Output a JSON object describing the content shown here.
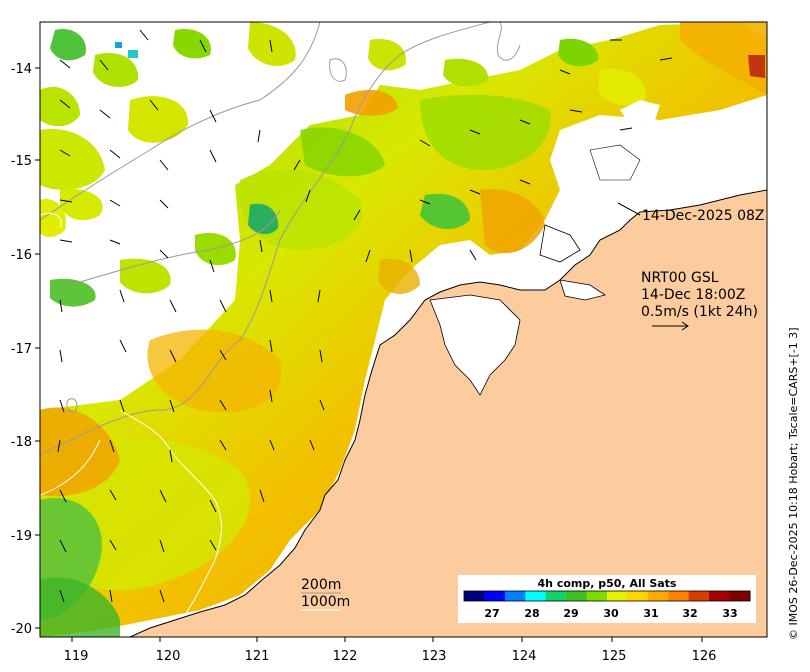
{
  "map": {
    "x_axis_labels": [
      "119",
      "120",
      "121",
      "122",
      "123",
      "124",
      "125",
      "126"
    ],
    "y_axis_labels": [
      "-14",
      "-15",
      "-16",
      "-17",
      "-18",
      "-19",
      "-20"
    ],
    "land_color": "#fccc9e",
    "contour_gray_color": "#9a9a9a",
    "contour_white_color": "#ffffff"
  },
  "annotations": {
    "sst_time": "14-Dec-2025 08Z",
    "current_product": "NRT00 GSL",
    "current_time": "14-Dec 18:00Z",
    "current_scale": "0.5m/s (1kt 24h)",
    "depth_label_200": "200m",
    "depth_label_1000": "1000m"
  },
  "colorbar": {
    "title": "4h comp, p50, All Sats",
    "ticks": [
      "27",
      "28",
      "29",
      "30",
      "31",
      "32",
      "33"
    ],
    "colors": [
      "#00007f",
      "#0000ff",
      "#007fff",
      "#00ffff",
      "#11d36a",
      "#3ec21f",
      "#7fdc00",
      "#e6f000",
      "#ffd400",
      "#ffa900",
      "#ff7f00",
      "#d23f00",
      "#a50000",
      "#7f0000"
    ]
  },
  "credit": "© IMOS 26-Dec-2025 10:18 Hobart; Tscale=CARS+[-1 3]"
}
